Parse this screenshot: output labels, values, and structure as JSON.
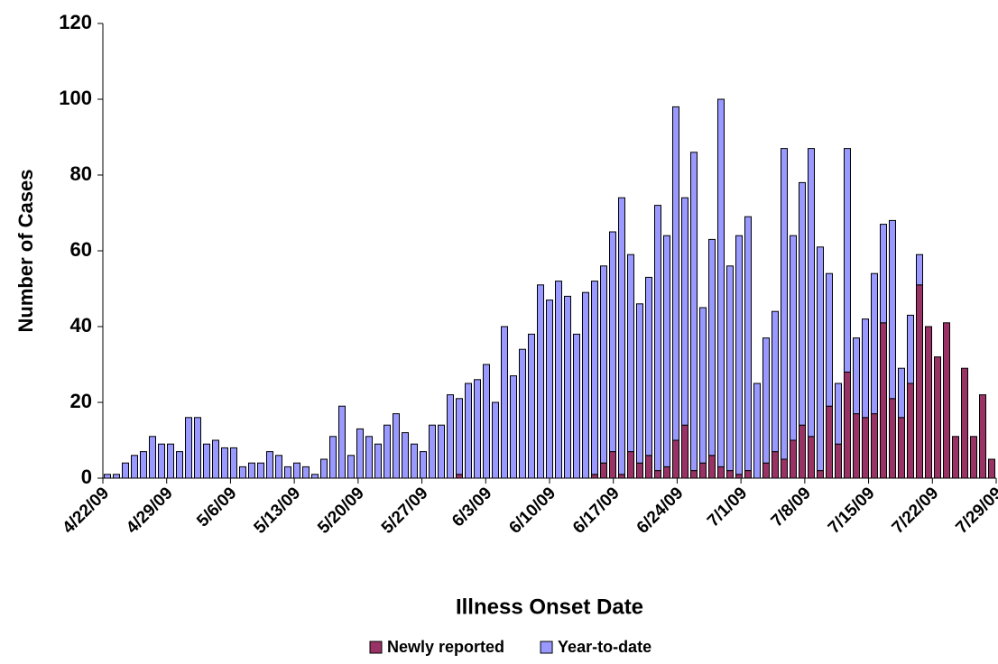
{
  "chart_data": {
    "type": "stacked_bar",
    "x_label": "Illness Onset Date",
    "y_label": "Number of Cases",
    "categories": [
      "4/22/09",
      null,
      null,
      null,
      null,
      null,
      null,
      "4/29/09",
      null,
      null,
      null,
      null,
      null,
      null,
      "5/6/09",
      null,
      null,
      null,
      null,
      null,
      null,
      "5/13/09",
      null,
      null,
      null,
      null,
      null,
      null,
      "5/20/09",
      null,
      null,
      null,
      null,
      null,
      null,
      "5/27/09",
      null,
      null,
      null,
      null,
      null,
      null,
      "6/3/09",
      null,
      null,
      null,
      null,
      null,
      null,
      "6/10/09",
      null,
      null,
      null,
      null,
      null,
      null,
      "6/17/09",
      null,
      null,
      null,
      null,
      null,
      null,
      "6/24/09",
      null,
      null,
      null,
      null,
      null,
      null,
      "7/1/09",
      null,
      null,
      null,
      null,
      null,
      null,
      "7/8/09",
      null,
      null,
      null,
      null,
      null,
      null,
      "7/15/09",
      null,
      null,
      null,
      null,
      null,
      null,
      "7/22/09",
      null,
      null,
      null,
      null,
      null,
      null,
      "7/29/09"
    ],
    "series": [
      {
        "name": "Newly reported",
        "color": "#993366",
        "values": [
          0,
          0,
          0,
          0,
          0,
          0,
          0,
          0,
          0,
          0,
          0,
          0,
          0,
          0,
          0,
          0,
          0,
          0,
          0,
          0,
          0,
          0,
          0,
          0,
          0,
          0,
          0,
          0,
          0,
          0,
          0,
          0,
          0,
          0,
          0,
          0,
          0,
          0,
          0,
          1,
          0,
          0,
          0,
          0,
          0,
          0,
          0,
          0,
          0,
          0,
          0,
          0,
          0,
          0,
          1,
          4,
          7,
          1,
          7,
          4,
          6,
          2,
          3,
          10,
          14,
          2,
          4,
          6,
          3,
          2,
          1,
          2,
          0,
          4,
          7,
          5,
          10,
          14,
          11,
          2,
          19,
          9,
          28,
          17,
          16,
          17,
          41,
          21,
          16,
          25,
          51,
          40,
          32,
          41,
          11,
          29,
          11,
          22,
          5
        ]
      },
      {
        "name": "Year-to-date",
        "color": "#9999ff",
        "values": [
          1,
          1,
          4,
          6,
          7,
          11,
          9,
          9,
          7,
          16,
          16,
          9,
          10,
          8,
          8,
          3,
          4,
          4,
          7,
          6,
          3,
          4,
          3,
          1,
          5,
          11,
          19,
          6,
          13,
          11,
          9,
          14,
          17,
          12,
          9,
          7,
          14,
          14,
          22,
          20,
          25,
          26,
          30,
          20,
          40,
          27,
          34,
          38,
          51,
          47,
          52,
          48,
          38,
          49,
          51,
          52,
          58,
          73,
          52,
          42,
          47,
          70,
          61,
          88,
          60,
          84,
          41,
          57,
          97,
          54,
          63,
          67,
          25,
          33,
          37,
          82,
          54,
          64,
          76,
          59,
          35,
          16,
          59,
          20,
          26,
          37,
          26,
          47,
          13,
          18,
          8,
          0,
          0,
          0,
          0,
          0,
          0,
          0,
          0
        ]
      }
    ],
    "ylim": [
      0,
      120
    ],
    "yticks": [
      0,
      20,
      40,
      60,
      80,
      100,
      120
    ],
    "grid": false,
    "legend": "bottom"
  }
}
